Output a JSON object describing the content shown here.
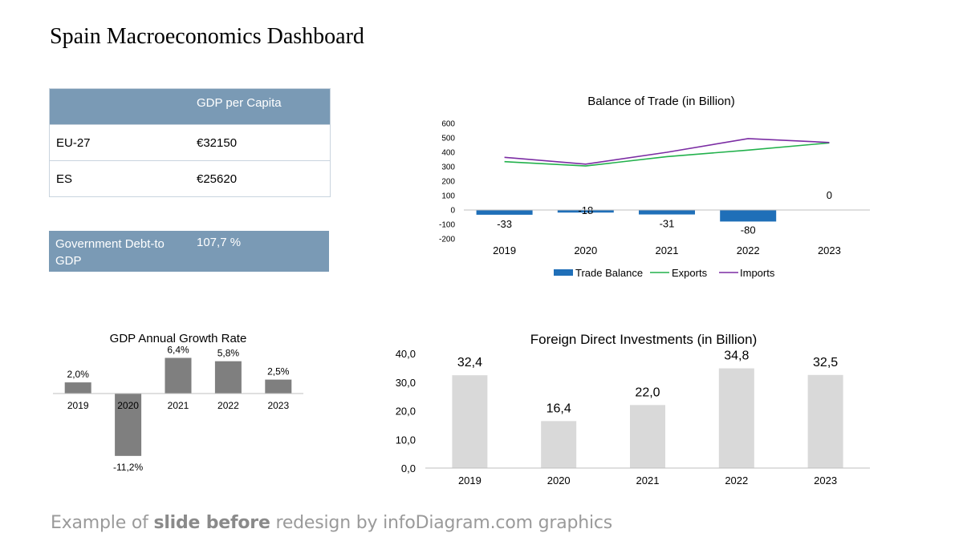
{
  "page": {
    "title": "Spain Macroeconomics Dashboard",
    "footer_prefix": "Example of ",
    "footer_bold": "slide before",
    "footer_suffix": " redesign by infoDiagram.com graphics"
  },
  "gdp_table": {
    "header_label": "",
    "header_value": "GDP per Capita",
    "rows": [
      {
        "label": "EU-27",
        "value": "€32150"
      },
      {
        "label": "ES",
        "value": "€25620"
      }
    ]
  },
  "debt": {
    "label": "Government Debt-to GDP",
    "value": "107,7 %"
  },
  "colors": {
    "table_header": "#7a9ab5",
    "trade_bar": "#1f6fb8",
    "exports_line": "#22b14c",
    "imports_line": "#7b2ca3",
    "growth_bar": "#7f7f7f",
    "fdi_bar": "#d9d9d9"
  },
  "chart_data": [
    {
      "id": "trade",
      "type": "bar",
      "title": "Balance of Trade (in Billion)",
      "categories": [
        "2019",
        "2020",
        "2021",
        "2022",
        "2023"
      ],
      "series": [
        {
          "name": "Trade Balance",
          "type": "bar",
          "values": [
            -33,
            -18,
            -31,
            -80,
            0
          ]
        },
        {
          "name": "Exports",
          "type": "line",
          "values": [
            335,
            305,
            370,
            415,
            465
          ]
        },
        {
          "name": "Imports",
          "type": "line",
          "values": [
            365,
            318,
            400,
            495,
            468
          ]
        }
      ],
      "data_labels": [
        "-33",
        "-18",
        "-31",
        "-80",
        "0"
      ],
      "ylim": [
        -200,
        600
      ],
      "yticks": [
        600,
        500,
        400,
        300,
        200,
        100,
        0,
        -100,
        -200
      ],
      "legend": "bottom"
    },
    {
      "id": "growth",
      "type": "bar",
      "title": "GDP Annual Growth Rate",
      "categories": [
        "2019",
        "2020",
        "2021",
        "2022",
        "2023"
      ],
      "values": [
        2.0,
        -11.2,
        6.4,
        5.8,
        2.5
      ],
      "data_labels": [
        "2,0%",
        "-11,2%",
        "6,4%",
        "5,8%",
        "2,5%"
      ]
    },
    {
      "id": "fdi",
      "type": "bar",
      "title": "Foreign Direct Investments (in Billion)",
      "categories": [
        "2019",
        "2020",
        "2021",
        "2022",
        "2023"
      ],
      "values": [
        32.4,
        16.4,
        22.0,
        34.8,
        32.5
      ],
      "data_labels": [
        "32,4",
        "16,4",
        "22,0",
        "34,8",
        "32,5"
      ],
      "ylim": [
        0,
        40
      ],
      "yticks": [
        "0,0",
        "10,0",
        "20,0",
        "30,0",
        "40,0"
      ]
    }
  ]
}
